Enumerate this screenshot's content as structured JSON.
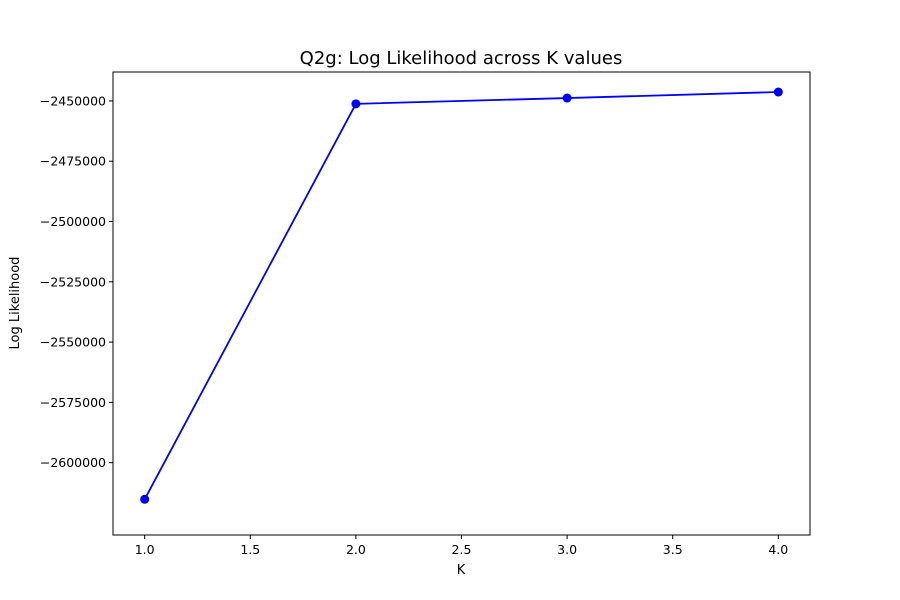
{
  "chart_data": {
    "type": "line",
    "title": "Q2g: Log Likelihood across K values",
    "xlabel": "K",
    "ylabel": "Log Likelihood",
    "xlim": [
      0.85,
      4.15
    ],
    "ylim": [
      -2630000,
      -2438000
    ],
    "x_ticks": [
      1.0,
      1.5,
      2.0,
      2.5,
      3.0,
      3.5,
      4.0
    ],
    "x_tick_labels": [
      "1.0",
      "1.5",
      "2.0",
      "2.5",
      "3.0",
      "3.5",
      "4.0"
    ],
    "y_ticks": [
      -2450000,
      -2475000,
      -2500000,
      -2525000,
      -2550000,
      -2575000,
      -2600000
    ],
    "y_tick_labels": [
      "−2450000",
      "−2475000",
      "−2500000",
      "−2525000",
      "−2550000",
      "−2575000",
      "−2600000"
    ],
    "grid": false,
    "legend": false,
    "series": [
      {
        "color": "#0000ff",
        "marker": "circle",
        "x": [
          1,
          2,
          3,
          4
        ],
        "y": [
          -2615200,
          -2451200,
          -2448800,
          -2446300
        ]
      }
    ]
  }
}
